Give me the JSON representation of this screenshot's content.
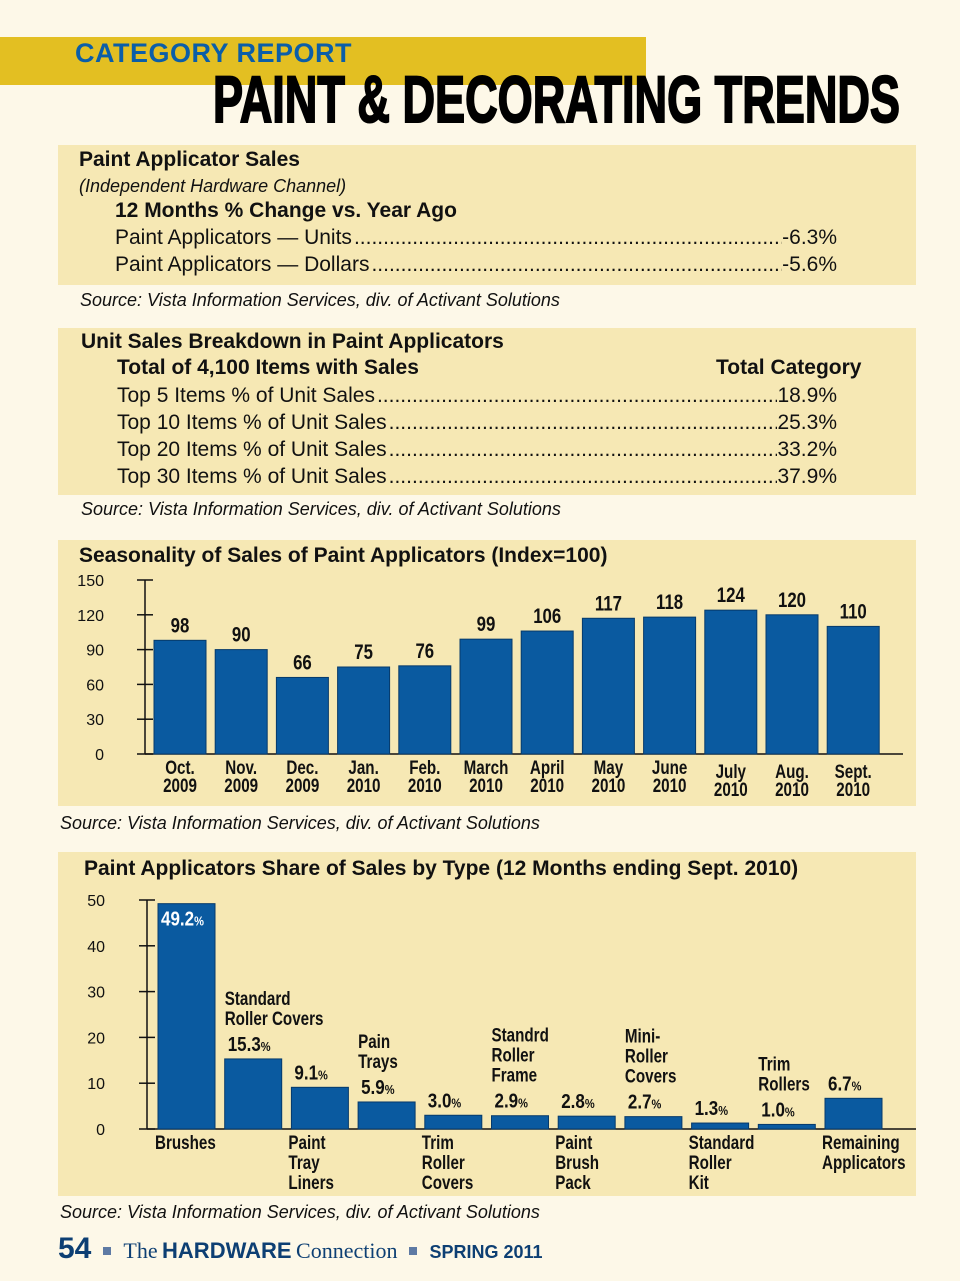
{
  "header": {
    "kicker": "CATEGORY REPORT",
    "title": "PAINT & DECORATING TRENDS",
    "band_color": "#e3bf22",
    "kicker_color": "#0b5ea8"
  },
  "panel1": {
    "title": "Paint Applicator Sales",
    "subtitle": "(Independent Hardware Channel)",
    "heading": "12 Months % Change vs. Year Ago",
    "rows": [
      {
        "label": "Paint Applicators — Units",
        "value": "-6.3%"
      },
      {
        "label": "Paint Applicators — Dollars",
        "value": "-5.6%"
      }
    ],
    "source": "Source: Vista Information Services, div. of Activant Solutions"
  },
  "panel2": {
    "title": "Unit Sales Breakdown in Paint Applicators",
    "heading": "Total of 4,100 Items with Sales",
    "column": "Total Category",
    "rows": [
      {
        "label": "Top 5 Items % of Unit Sales",
        "value": "18.9%"
      },
      {
        "label": "Top 10 Items % of Unit Sales",
        "value": "25.3%"
      },
      {
        "label": "Top 20 Items % of Unit Sales",
        "value": "33.2%"
      },
      {
        "label": "Top 30 Items % of Unit Sales",
        "value": "37.9%"
      }
    ],
    "source": "Source: Vista Information Services, div. of Activant Solutions"
  },
  "chart_data": [
    {
      "type": "bar",
      "title": "Seasonality of Sales of Paint Applicators (Index=100)",
      "categories": [
        [
          "Oct.",
          "2009"
        ],
        [
          "Nov.",
          "2009"
        ],
        [
          "Dec.",
          "2009"
        ],
        [
          "Jan.",
          "2010"
        ],
        [
          "Feb.",
          "2010"
        ],
        [
          "March",
          "2010"
        ],
        [
          "April",
          "2010"
        ],
        [
          "May",
          "2010"
        ],
        [
          "June",
          "2010"
        ],
        [
          "July",
          "2010"
        ],
        [
          "Aug.",
          "2010"
        ],
        [
          "Sept.",
          "2010"
        ]
      ],
      "values": [
        98,
        90,
        66,
        75,
        76,
        99,
        106,
        117,
        118,
        124,
        120,
        110
      ],
      "yticks": [
        0,
        30,
        60,
        90,
        120,
        150
      ],
      "ylim": [
        0,
        150
      ],
      "grid": false,
      "bar_color": "#0a5aa0",
      "source": "Source: Vista Information Services, div. of Activant Solutions"
    },
    {
      "type": "bar",
      "title": "Paint Applicators Share of Sales by Type (12 Months ending Sept. 2010)",
      "categories": [
        [
          "Brushes"
        ],
        [
          "Standard",
          "Roller Covers"
        ],
        [
          "Paint",
          "Tray",
          "Liners"
        ],
        [
          "Pain",
          "Trays"
        ],
        [
          "Trim",
          "Roller",
          "Covers"
        ],
        [
          "Standrd",
          "Roller",
          "Frame"
        ],
        [
          "Paint",
          "Brush",
          "Pack"
        ],
        [
          "Mini-",
          "Roller",
          "Covers"
        ],
        [
          "Standard",
          "Roller",
          "Kit"
        ],
        [
          "Trim",
          "Rollers"
        ],
        [
          "Remaining",
          "Applicators"
        ]
      ],
      "values": [
        49.2,
        15.3,
        9.1,
        5.9,
        3.0,
        2.9,
        2.8,
        2.7,
        1.3,
        1.0,
        6.7
      ],
      "value_labels": [
        "49.2",
        "15.3",
        "9.1",
        "5.9",
        "3.0",
        "2.9",
        "2.8",
        "2.7",
        "1.3",
        "1.0",
        "6.7"
      ],
      "unit": "%",
      "yticks": [
        0,
        10,
        20,
        30,
        40,
        50
      ],
      "ylim": [
        0,
        50
      ],
      "grid": false,
      "bar_color": "#0a5aa0",
      "source": "Source: Vista Information Services, div. of Activant Solutions"
    }
  ],
  "footer": {
    "page": "54",
    "the": "The",
    "hardware": "HARDWARE",
    "connection": "Connection",
    "issue": "SPRING 2011"
  }
}
